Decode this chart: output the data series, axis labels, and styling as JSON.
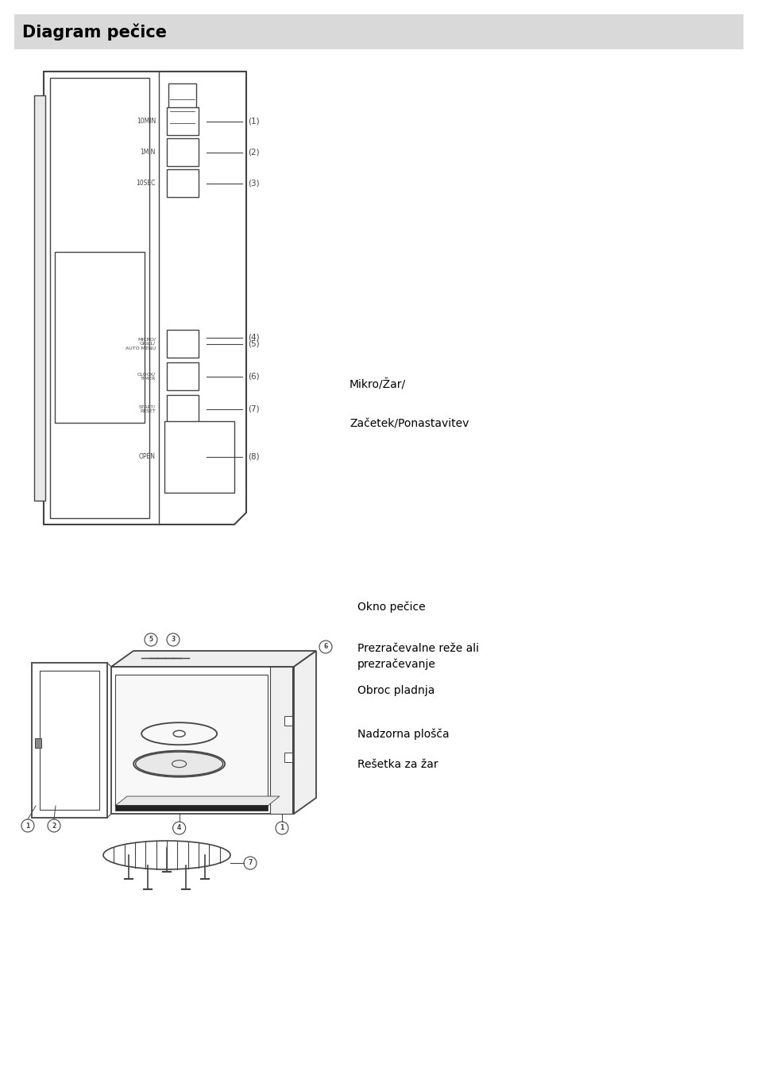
{
  "title": "Diagram pečice",
  "title_bg": "#d9d9d9",
  "bg_color": "#ffffff",
  "text_color": "#000000",
  "line_color": "#444444",
  "right_labels": {
    "mikro_zar": "Mikro/Žar/",
    "zacetek": "Začetek/Ponastavitev"
  },
  "right_labels2": {
    "okno": "Okno pečice",
    "prezracevalne": "Prezračevalne reže ali\nprezračevanje",
    "obroc": "Obroc pladnja",
    "nadzorna": "Nadzorna plošča",
    "resetka": "Rešetka za žar"
  },
  "panel_labels": {
    "10MIN": "10MIN",
    "1MIN": "1MIN",
    "10SEC": "10SEC",
    "MICRO": "MICRO/\nGRILL/\nAUTO MENU",
    "CLOCK": "CLOCK/\nTIMER",
    "START": "START/\nRESET",
    "OPEN": "OPEN"
  }
}
